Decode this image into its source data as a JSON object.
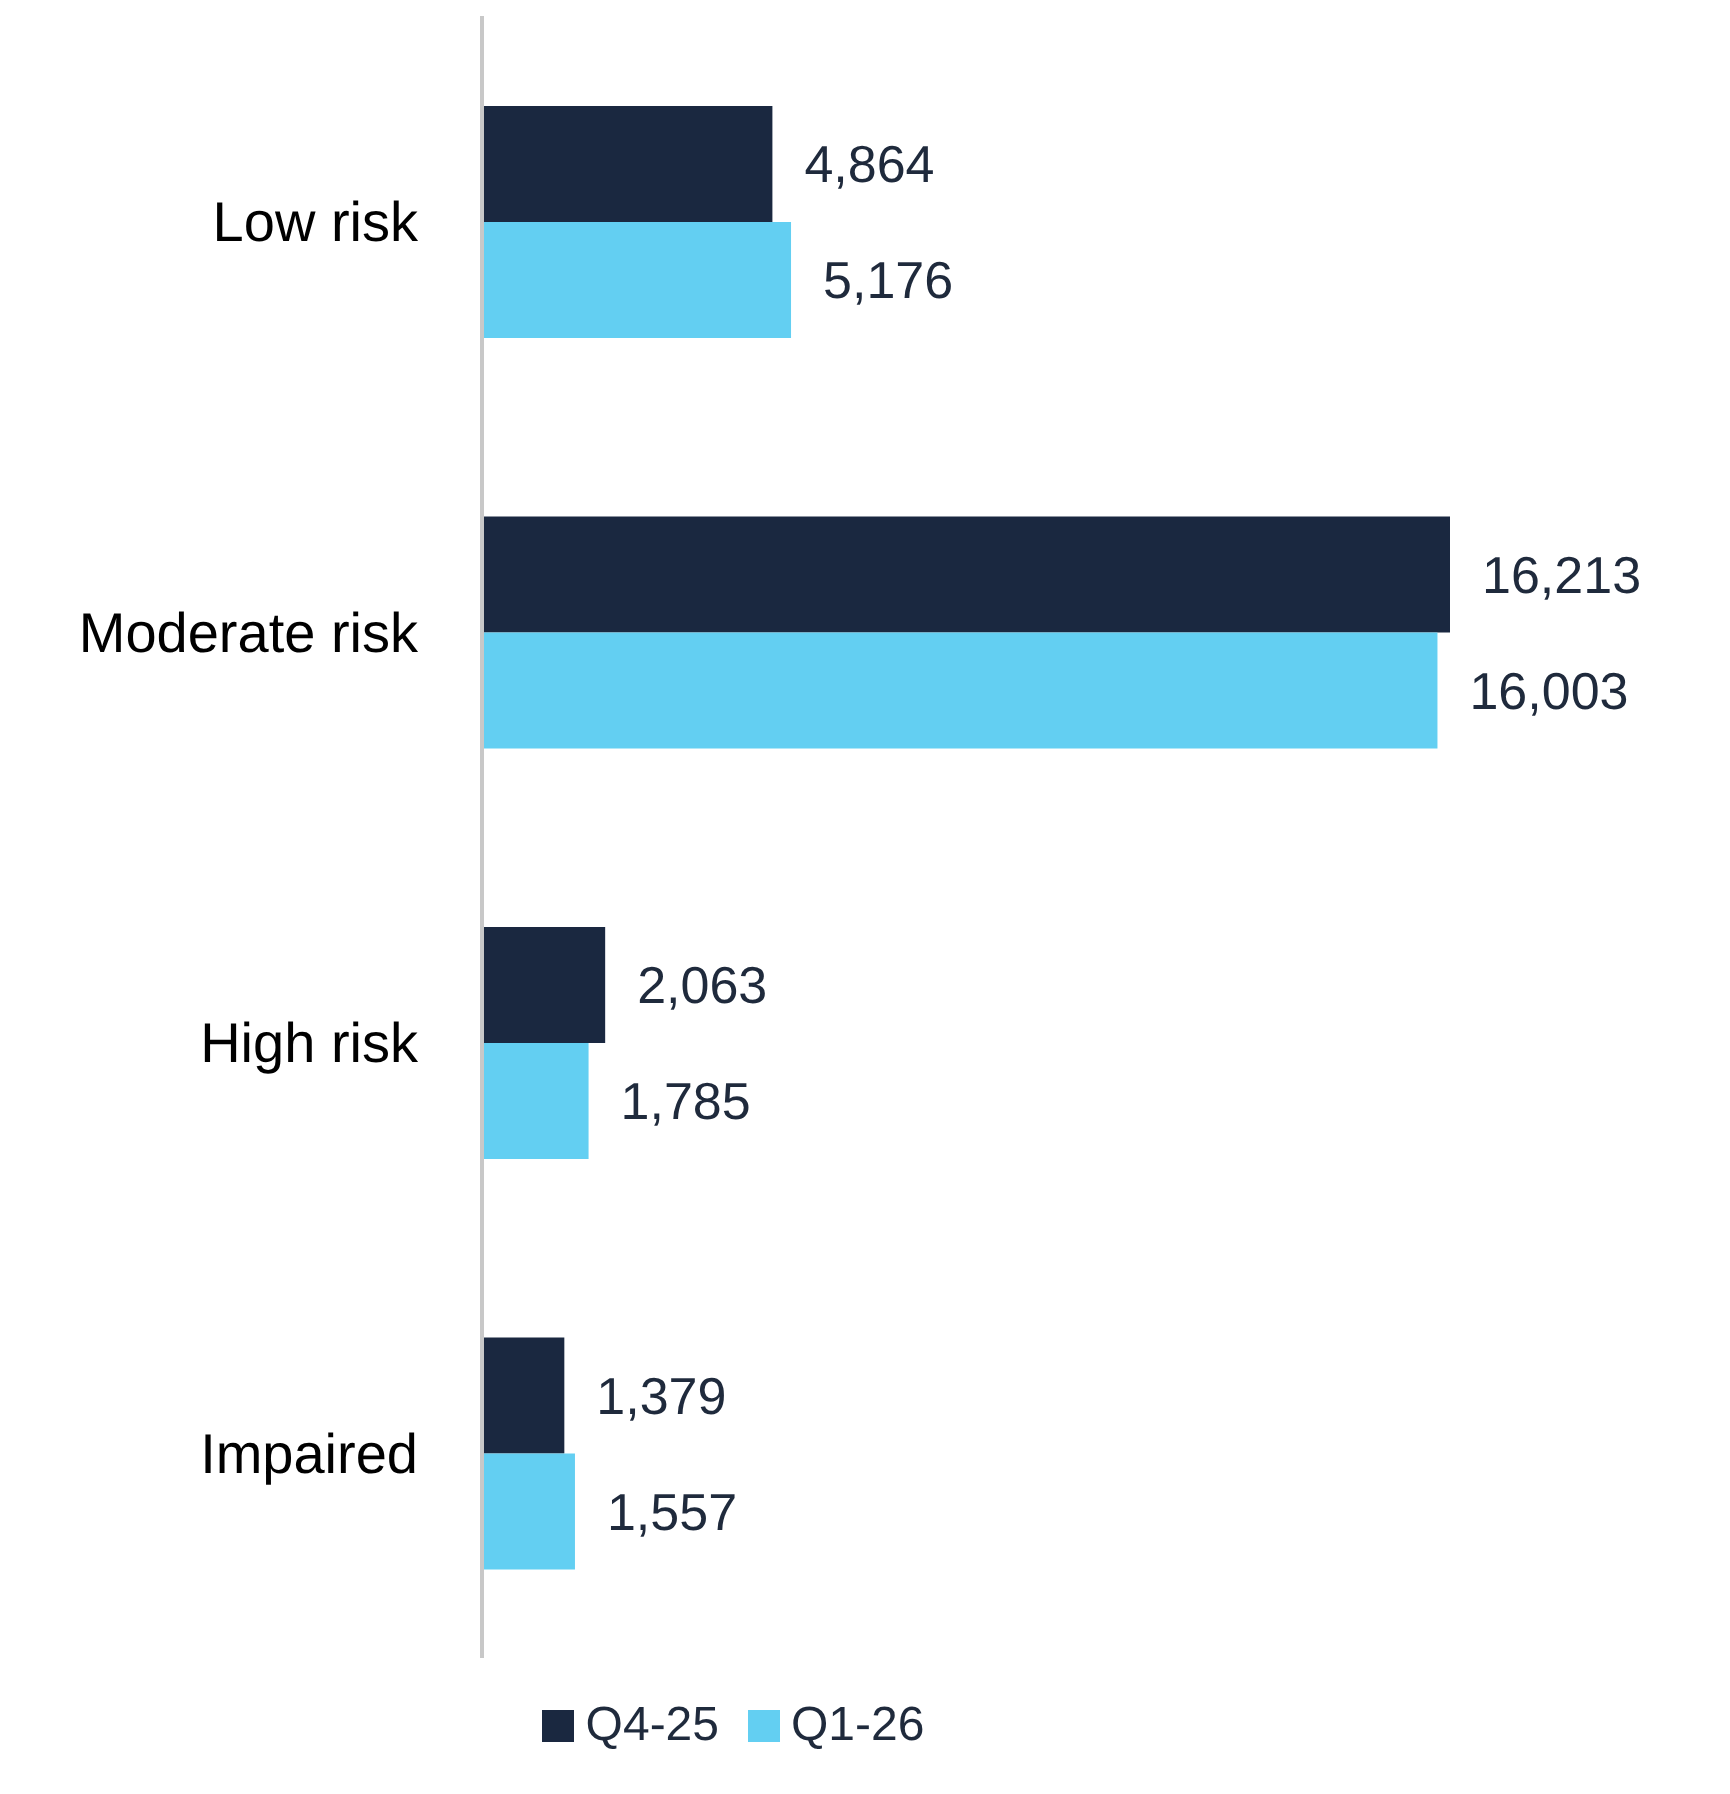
{
  "chart_data": {
    "type": "bar",
    "orientation": "horizontal",
    "categories": [
      "Low risk",
      "Moderate risk",
      "High risk",
      "Impaired"
    ],
    "series": [
      {
        "name": "Q4-25",
        "color": "#1a2840",
        "values": [
          4864,
          16213,
          2063,
          1379
        ],
        "value_labels": [
          "4,864",
          "16,213",
          "2,063",
          "1,379"
        ]
      },
      {
        "name": "Q1-26",
        "color": "#63cff2",
        "values": [
          5176,
          16003,
          1785,
          1557
        ],
        "value_labels": [
          "5,176",
          "16,003",
          "1,785",
          "1,557"
        ]
      }
    ],
    "legend": "bottom",
    "grid": false
  }
}
